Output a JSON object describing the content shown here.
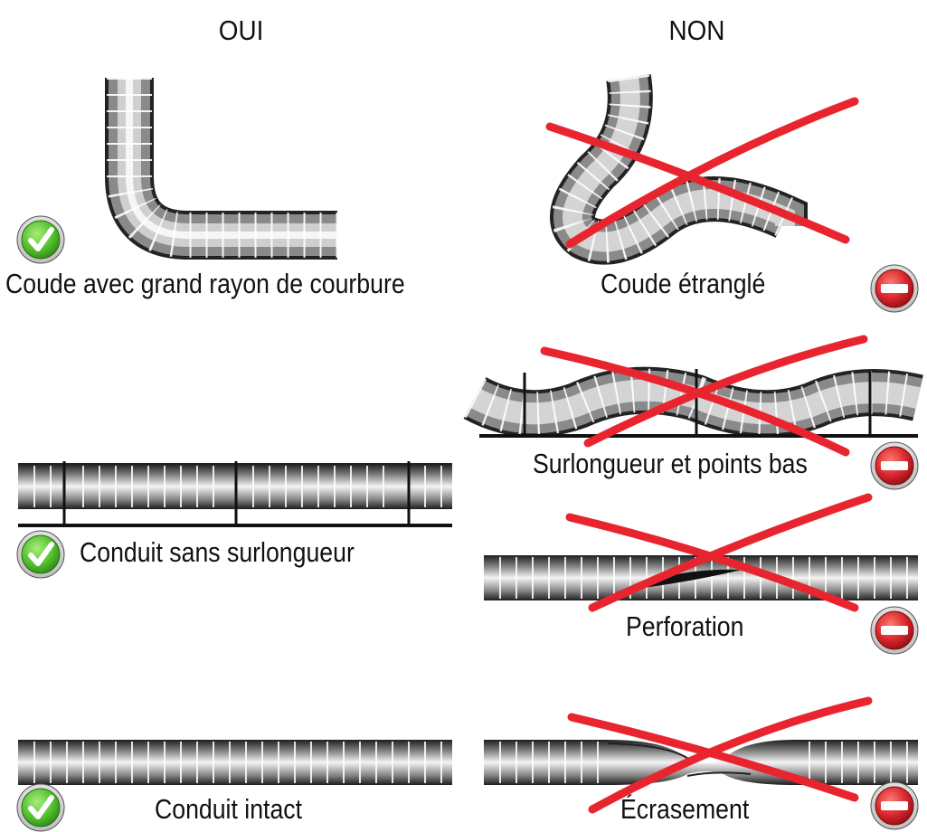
{
  "columns": {
    "yes": "OUI",
    "no": "NON"
  },
  "items": {
    "elbow_ok": "Coude avec grand rayon de courbure",
    "elbow_bad": "Coude étranglé",
    "sag_bad": "Surlongueur et points bas",
    "straight_ok": "Conduit sans surlongueur",
    "perforation_bad": "Perforation",
    "intact_ok": "Conduit intact",
    "crush_bad": "Écrasement"
  },
  "icons": {
    "ok": "check-badge-icon",
    "bad": "no-entry-icon"
  },
  "colors": {
    "ok": "#5cc23a",
    "bad": "#d8242b",
    "cross": "#e8252f",
    "duct_dark": "#2a2a2a",
    "duct_light": "#f2f2f2"
  }
}
